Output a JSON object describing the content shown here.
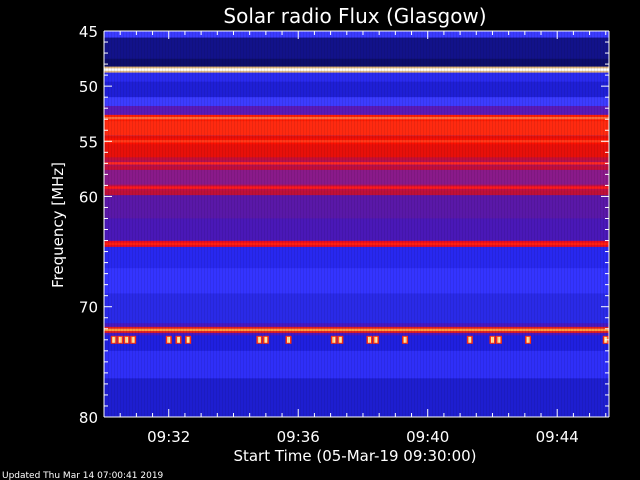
{
  "chart_data": {
    "type": "heatmap",
    "title": "Solar radio Flux (Glasgow)",
    "xlabel": "Start Time (05-Mar-19 09:30:00)",
    "ylabel": "Frequency [MHz]",
    "x_range_minutes": [
      0,
      15.6
    ],
    "x_ticks": [
      {
        "label": "09:32",
        "minutes": 2
      },
      {
        "label": "09:36",
        "minutes": 6
      },
      {
        "label": "09:40",
        "minutes": 10
      },
      {
        "label": "09:44",
        "minutes": 14
      }
    ],
    "ylim_mhz": [
      45,
      80
    ],
    "y_reversed": true,
    "y_ticks": [
      45,
      50,
      55,
      60,
      70,
      80
    ],
    "colormap": [
      "#000000",
      "#1a0a8f",
      "#2f2fff",
      "#8a1aa8",
      "#ff1a1a",
      "#ffe08a",
      "#ffffff"
    ],
    "background_bands_mhz": [
      {
        "from": 45.0,
        "to": 45.6,
        "color": "#3b3bff"
      },
      {
        "from": 45.6,
        "to": 47.5,
        "color": "#12128a"
      },
      {
        "from": 47.5,
        "to": 48.3,
        "color": "#0d0d6a"
      },
      {
        "from": 48.3,
        "to": 49.6,
        "color": "#2a2aef"
      },
      {
        "from": 49.6,
        "to": 51.0,
        "color": "#1f1fd6"
      },
      {
        "from": 51.0,
        "to": 51.8,
        "color": "#3c3cff"
      },
      {
        "from": 51.8,
        "to": 52.6,
        "color": "#5a1ab8"
      },
      {
        "from": 52.6,
        "to": 54.5,
        "color": "#ff2a10"
      },
      {
        "from": 54.5,
        "to": 56.5,
        "color": "#e8100a"
      },
      {
        "from": 56.5,
        "to": 57.6,
        "color": "#c40e3a"
      },
      {
        "from": 57.6,
        "to": 59.0,
        "color": "#8a1a8a"
      },
      {
        "from": 59.0,
        "to": 59.9,
        "color": "#c01038"
      },
      {
        "from": 59.9,
        "to": 62.0,
        "color": "#5a18a8"
      },
      {
        "from": 62.0,
        "to": 64.0,
        "color": "#4a18b8"
      },
      {
        "from": 64.0,
        "to": 64.6,
        "color": "#6a1aa0"
      },
      {
        "from": 64.6,
        "to": 66.5,
        "color": "#2828f0"
      },
      {
        "from": 66.5,
        "to": 68.8,
        "color": "#3434ff"
      },
      {
        "from": 68.8,
        "to": 71.5,
        "color": "#2a2ae8"
      },
      {
        "from": 71.5,
        "to": 72.6,
        "color": "#4a18c0"
      },
      {
        "from": 72.6,
        "to": 74.0,
        "color": "#2020e0"
      },
      {
        "from": 74.0,
        "to": 76.5,
        "color": "#2f2ff8"
      },
      {
        "from": 76.5,
        "to": 80.0,
        "color": "#1e1ed0"
      }
    ],
    "emission_lines_mhz": [
      {
        "mhz": 48.5,
        "color": "#ffffff",
        "halo": "#ffd070"
      },
      {
        "mhz": 52.9,
        "color": "#ff6a3a",
        "halo": "#ff1a00"
      },
      {
        "mhz": 55.0,
        "color": "#ff3a1a",
        "halo": "#ff1000"
      },
      {
        "mhz": 57.0,
        "color": "#ff2a20",
        "halo": "#b0105a"
      },
      {
        "mhz": 59.2,
        "color": "#ff1a1a",
        "halo": "#c0104a"
      },
      {
        "mhz": 64.3,
        "color": "#ff2010",
        "halo": "#ff0a0a"
      },
      {
        "mhz": 72.1,
        "color": "#ff9a40",
        "halo": "#ff2000"
      }
    ],
    "bursts": [
      {
        "minutes": 0.3,
        "mhz": 73.0
      },
      {
        "minutes": 0.5,
        "mhz": 73.0
      },
      {
        "minutes": 0.7,
        "mhz": 73.0
      },
      {
        "minutes": 0.9,
        "mhz": 73.0
      },
      {
        "minutes": 2.0,
        "mhz": 73.0
      },
      {
        "minutes": 2.3,
        "mhz": 73.0
      },
      {
        "minutes": 2.6,
        "mhz": 73.0
      },
      {
        "minutes": 4.8,
        "mhz": 73.0
      },
      {
        "minutes": 5.0,
        "mhz": 73.0
      },
      {
        "minutes": 5.7,
        "mhz": 73.0
      },
      {
        "minutes": 7.1,
        "mhz": 73.0
      },
      {
        "minutes": 7.3,
        "mhz": 73.0
      },
      {
        "minutes": 8.2,
        "mhz": 73.0
      },
      {
        "minutes": 8.4,
        "mhz": 73.0
      },
      {
        "minutes": 9.3,
        "mhz": 73.0
      },
      {
        "minutes": 11.3,
        "mhz": 73.0
      },
      {
        "minutes": 12.0,
        "mhz": 73.0
      },
      {
        "minutes": 12.2,
        "mhz": 73.0
      },
      {
        "minutes": 13.1,
        "mhz": 73.0
      },
      {
        "minutes": 15.5,
        "mhz": 73.0
      }
    ],
    "grid": false
  },
  "footer": {
    "updated": "Updated Thu Mar 14 07:00:41 2019"
  }
}
